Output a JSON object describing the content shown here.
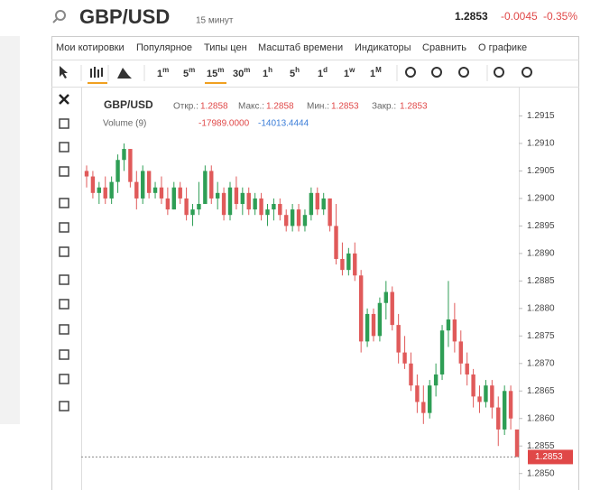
{
  "header": {
    "symbol": "GBP/USD",
    "interval": "15 минут",
    "price": "1.2853",
    "change": "-0.0045",
    "change_pct": "-0.35%"
  },
  "menu": [
    "Мои котировки",
    "Популярное",
    "Типы цен",
    "Масштаб времени",
    "Индикаторы",
    "Сравнить",
    "О графике"
  ],
  "timeframes": [
    {
      "num": "1",
      "unit": "m"
    },
    {
      "num": "5",
      "unit": "m"
    },
    {
      "num": "15",
      "unit": "m"
    },
    {
      "num": "30",
      "unit": "m"
    },
    {
      "num": "1",
      "unit": "h"
    },
    {
      "num": "5",
      "unit": "h"
    },
    {
      "num": "1",
      "unit": "d"
    },
    {
      "num": "1",
      "unit": "w"
    },
    {
      "num": "1",
      "unit": "M"
    }
  ],
  "legend": {
    "symbol": "GBP/USD",
    "open_label": "Откр.:",
    "open": "1.2858",
    "high_label": "Макс.:",
    "high": "1.2858",
    "low_label": "Мин.:",
    "low": "1.2853",
    "close_label": "Закр.:",
    "close": "1.2853",
    "volume_label": "Volume (9)",
    "volume_a": "-17989.0000",
    "volume_b": "-14013.4444"
  },
  "chart_data": {
    "type": "candlestick",
    "up_color": "#2e9e55",
    "down_color": "#e05a5a",
    "ylim": [
      1.2847,
      1.292
    ],
    "yticks": [
      {
        "value": 1.285,
        "label": "1.2850"
      },
      {
        "value": 1.2855,
        "label": "1.2855"
      },
      {
        "value": 1.286,
        "label": "1.2860"
      },
      {
        "value": 1.2865,
        "label": "1.2865"
      },
      {
        "value": 1.287,
        "label": "1.2870"
      },
      {
        "value": 1.2875,
        "label": "1.2875"
      },
      {
        "value": 1.288,
        "label": "1.2880"
      },
      {
        "value": 1.2885,
        "label": "1.2885"
      },
      {
        "value": 1.289,
        "label": "1.2890"
      },
      {
        "value": 1.2895,
        "label": "1.2895"
      },
      {
        "value": 1.29,
        "label": "1.2900"
      },
      {
        "value": 1.2905,
        "label": "1.2905"
      },
      {
        "value": 1.291,
        "label": "1.2910"
      },
      {
        "value": 1.2915,
        "label": "1.2915"
      }
    ],
    "last_price": 1.2853,
    "open": [
      1.2905,
      1.2904,
      1.2901,
      1.2902,
      1.29,
      1.2903,
      1.2907,
      1.2909,
      1.2903,
      1.29,
      1.2905,
      1.2901,
      1.2902,
      1.29,
      1.2898,
      1.2902,
      1.29,
      1.2897,
      1.2898,
      1.2899,
      1.2905,
      1.29,
      1.2901,
      1.2897,
      1.2902,
      1.2899,
      1.2901,
      1.2898,
      1.29,
      1.2897,
      1.2898,
      1.2899,
      1.2897,
      1.2895,
      1.2898,
      1.2895,
      1.2897,
      1.2901,
      1.2898,
      1.29,
      1.2895,
      1.2889,
      1.2887,
      1.289,
      1.2886,
      1.2874,
      1.2879,
      1.2875,
      1.2881,
      1.2883,
      1.2877,
      1.2872,
      1.287,
      1.2866,
      1.2863,
      1.2861,
      1.2866,
      1.2868,
      1.2876,
      1.2878,
      1.2874,
      1.287,
      1.2868,
      1.2864,
      1.2863,
      1.2866,
      1.2862,
      1.2858,
      1.2865,
      1.2858
    ],
    "high": [
      1.2906,
      1.2905,
      1.2903,
      1.2904,
      1.2904,
      1.2908,
      1.291,
      1.2909,
      1.2905,
      1.2906,
      1.2905,
      1.2903,
      1.2904,
      1.2902,
      1.2903,
      1.2903,
      1.2902,
      1.2899,
      1.2903,
      1.2906,
      1.2906,
      1.2903,
      1.2902,
      1.2903,
      1.2904,
      1.2902,
      1.2902,
      1.2901,
      1.2901,
      1.2899,
      1.29,
      1.29,
      1.2898,
      1.2899,
      1.2899,
      1.2898,
      1.2902,
      1.2902,
      1.2901,
      1.29,
      1.2899,
      1.2892,
      1.2891,
      1.2892,
      1.2887,
      1.288,
      1.288,
      1.2882,
      1.2885,
      1.2884,
      1.2879,
      1.2875,
      1.2872,
      1.2868,
      1.2866,
      1.2867,
      1.287,
      1.2877,
      1.2885,
      1.2881,
      1.2876,
      1.2872,
      1.2869,
      1.2866,
      1.2867,
      1.2867,
      1.2864,
      1.2866,
      1.2866,
      1.2858
    ],
    "low": [
      1.2902,
      1.29,
      1.2899,
      1.2899,
      1.2899,
      1.2901,
      1.2905,
      1.2902,
      1.2898,
      1.2899,
      1.29,
      1.29,
      1.2899,
      1.2897,
      1.2898,
      1.2899,
      1.2896,
      1.2895,
      1.2897,
      1.2899,
      1.2899,
      1.2898,
      1.2896,
      1.2896,
      1.2898,
      1.2897,
      1.2897,
      1.2897,
      1.2896,
      1.2895,
      1.2896,
      1.2896,
      1.2894,
      1.2894,
      1.2894,
      1.2894,
      1.2896,
      1.2897,
      1.2897,
      1.2894,
      1.2888,
      1.2886,
      1.2886,
      1.2885,
      1.2872,
      1.2873,
      1.2874,
      1.2874,
      1.2878,
      1.2876,
      1.287,
      1.2869,
      1.2865,
      1.2861,
      1.2859,
      1.286,
      1.2864,
      1.2867,
      1.2873,
      1.2872,
      1.2868,
      1.2866,
      1.2862,
      1.2861,
      1.2862,
      1.286,
      1.2855,
      1.2857,
      1.2858,
      1.2853
    ],
    "close": [
      1.2904,
      1.2901,
      1.2902,
      1.29,
      1.2903,
      1.2907,
      1.2909,
      1.2903,
      1.29,
      1.2905,
      1.2901,
      1.2902,
      1.29,
      1.2898,
      1.2902,
      1.29,
      1.2897,
      1.2898,
      1.2899,
      1.2905,
      1.29,
      1.2901,
      1.2897,
      1.2902,
      1.2899,
      1.2901,
      1.2898,
      1.29,
      1.2897,
      1.2898,
      1.2899,
      1.2897,
      1.2895,
      1.2898,
      1.2895,
      1.2897,
      1.2901,
      1.2898,
      1.29,
      1.2895,
      1.2889,
      1.2887,
      1.289,
      1.2886,
      1.2874,
      1.2879,
      1.2875,
      1.2881,
      1.2883,
      1.2877,
      1.2872,
      1.287,
      1.2866,
      1.2863,
      1.2861,
      1.2866,
      1.2868,
      1.2876,
      1.2878,
      1.2874,
      1.287,
      1.2868,
      1.2864,
      1.2863,
      1.2866,
      1.2862,
      1.2858,
      1.2865,
      1.286,
      1.2853
    ]
  }
}
